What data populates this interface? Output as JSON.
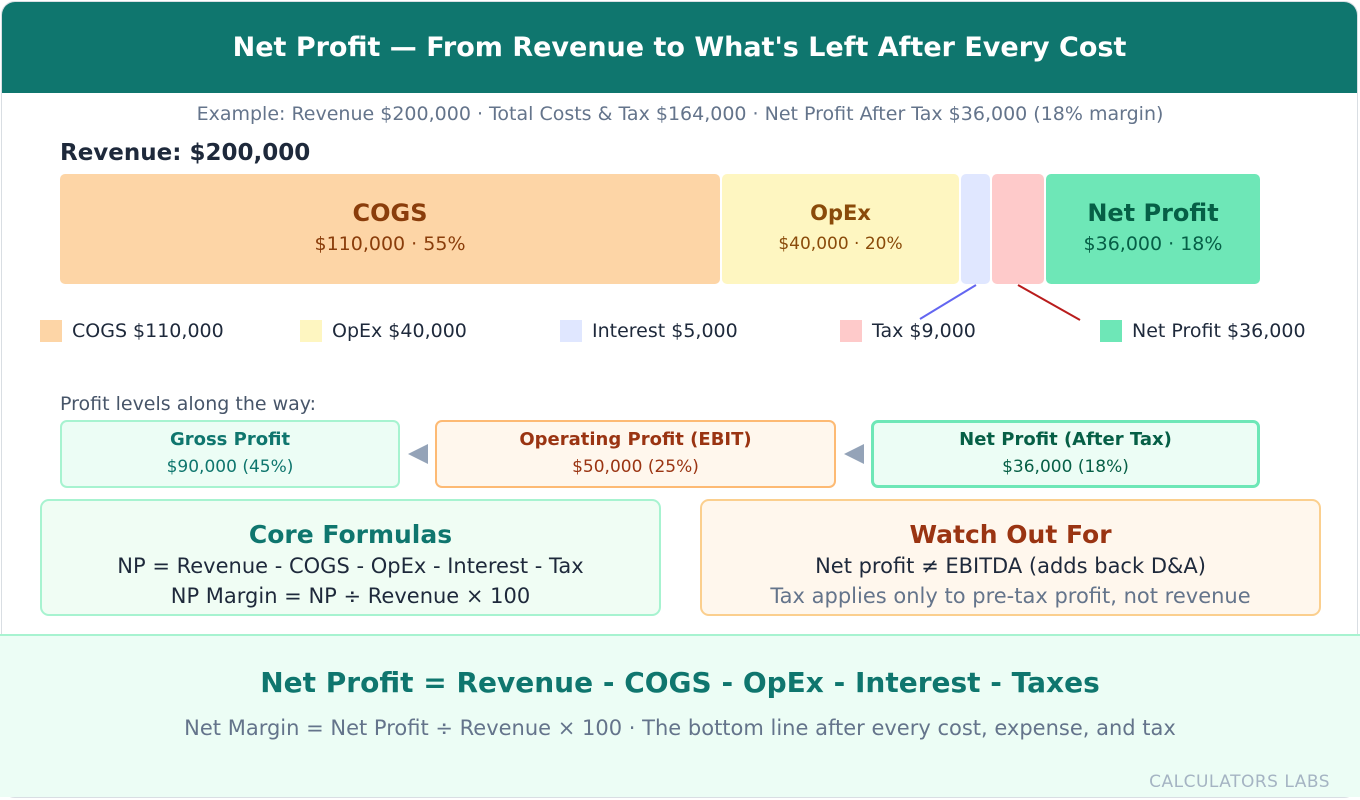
{
  "header": {
    "title": "Net Profit — From Revenue to What's Left After Every Cost"
  },
  "subtitle": "Example: Revenue $200,000 · Total Costs & Tax $164,000 · Net Profit After Tax $36,000 (18% margin)",
  "revenue_label": "Revenue: $200,000",
  "bar": {
    "segments": [
      {
        "name": "COGS",
        "value_text": "$110,000 · 55%",
        "color": "#fdd5a6"
      },
      {
        "name": "OpEx",
        "value_text": "$40,000 · 20%",
        "color": "#fef6c1"
      },
      {
        "name": "Interest",
        "color": "#e0e7ff"
      },
      {
        "name": "Tax",
        "color": "#fecaca"
      },
      {
        "name": "Net Profit",
        "value_text": "$36,000 · 18%",
        "color": "#6ee7b7"
      }
    ]
  },
  "legend": [
    {
      "label": "COGS $110,000",
      "color": "#fdd5a6"
    },
    {
      "label": "OpEx $40,000",
      "color": "#fef6c1"
    },
    {
      "label": "Interest $5,000",
      "color": "#e0e7ff"
    },
    {
      "label": "Tax $9,000",
      "color": "#fecaca"
    },
    {
      "label": "Net Profit $36,000",
      "color": "#6ee7b7"
    }
  ],
  "levels": {
    "label": "Profit levels along the way:",
    "items": [
      {
        "name": "Gross Profit",
        "value": "$90,000 (45%)"
      },
      {
        "name": "Operating Profit (EBIT)",
        "value": "$50,000 (25%)"
      },
      {
        "name": "Net Profit (After Tax)",
        "value": "$36,000 (18%)"
      }
    ]
  },
  "core_formulas": {
    "title": "Core Formulas",
    "lines": [
      "NP = Revenue - COGS - OpEx - Interest - Tax",
      "NP Margin = NP ÷ Revenue × 100"
    ]
  },
  "watch_out": {
    "title": "Watch Out For",
    "lines": [
      "Net profit ≠ EBITDA (adds back D&A)",
      "Tax applies only to pre-tax profit, not revenue"
    ]
  },
  "footer": {
    "title": "Net Profit = Revenue - COGS - OpEx - Interest - Taxes",
    "subtitle": "Net Margin = Net Profit ÷ Revenue × 100 · The bottom line after every cost, expense, and tax",
    "brand": "CALCULATORS LABS"
  }
}
